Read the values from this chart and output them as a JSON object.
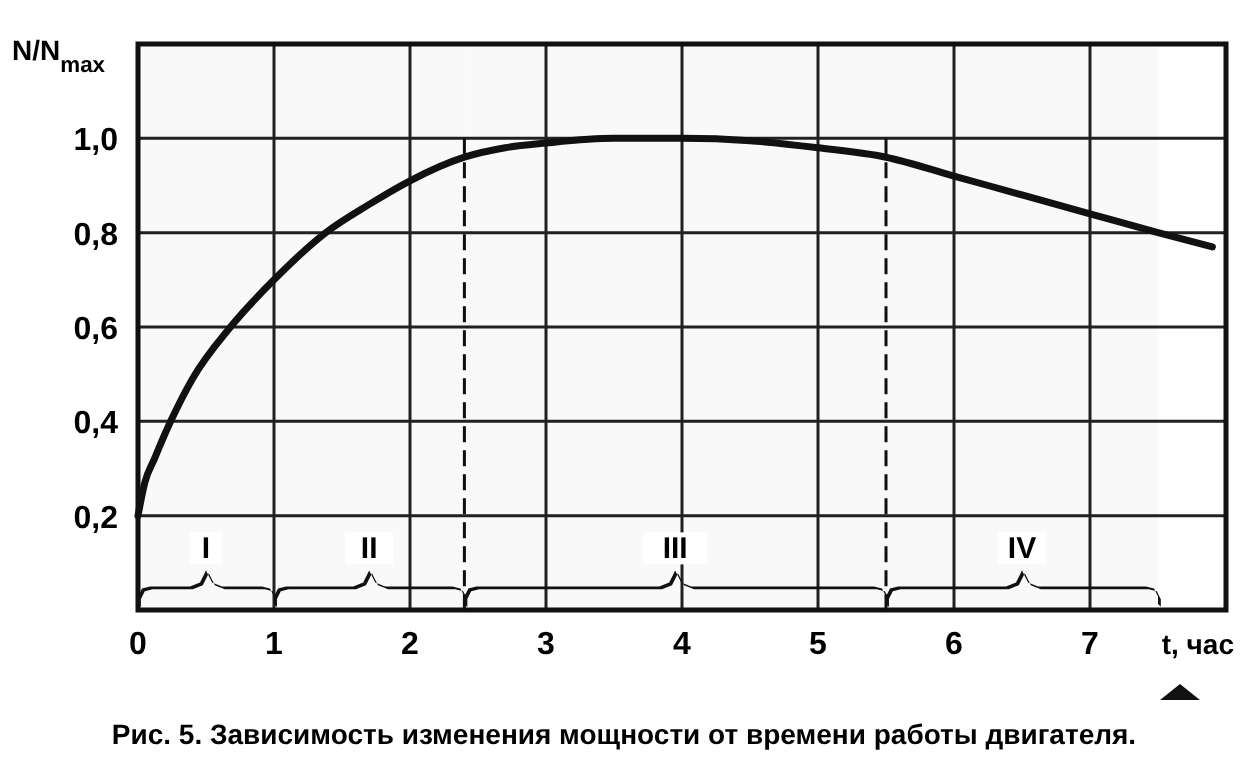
{
  "chart_data": {
    "type": "line",
    "ylabel": "N/N$_{max}$",
    "xlabel": "t, час",
    "x": [
      0,
      0.05,
      0.12,
      0.24,
      0.4,
      0.68,
      1,
      1.38,
      1.7,
      2,
      2.4,
      2.7,
      3,
      3.5,
      4,
      4.5,
      5,
      5.5,
      6,
      6.5,
      7,
      7.5,
      7.9
    ],
    "series": [
      {
        "color": "#111111",
        "values": [
          0.2,
          0.27,
          0.32,
          0.4,
          0.49,
          0.6,
          0.7,
          0.8,
          0.86,
          0.91,
          0.96,
          0.98,
          0.99,
          1.0,
          1.0,
          0.995,
          0.98,
          0.96,
          0.92,
          0.88,
          0.84,
          0.8,
          0.77
        ]
      }
    ],
    "xlim": [
      0,
      8
    ],
    "ylim": [
      0,
      1.2
    ],
    "xticks": [
      0,
      1,
      2,
      3,
      4,
      5,
      6,
      7
    ],
    "yticks": [
      {
        "value": 0.2,
        "label": "0,2"
      },
      {
        "value": 0.4,
        "label": "0,4"
      },
      {
        "value": 0.6,
        "label": "0,6"
      },
      {
        "value": 0.8,
        "label": "0,8"
      },
      {
        "value": 1.0,
        "label": "1,0"
      }
    ],
    "grid": true,
    "marker": "none",
    "line_style": "solid",
    "ref_lines": [
      {
        "axis": "x",
        "value": 2.4,
        "line_style": "dashed"
      },
      {
        "axis": "x",
        "value": 5.5,
        "line_style": "dashed"
      }
    ],
    "bands": [
      {
        "axis": "x",
        "from": 0,
        "to": 1,
        "label": "I"
      },
      {
        "axis": "x",
        "from": 1,
        "to": 2.4,
        "label": "II"
      },
      {
        "axis": "x",
        "from": 2.4,
        "to": 5.5,
        "label": "III"
      },
      {
        "axis": "x",
        "from": 5.5,
        "to": 7.5,
        "label": "IV"
      }
    ],
    "annotations": [
      "Рис. 5. Зависимость изменения мощности от времени работы двигателя."
    ]
  }
}
